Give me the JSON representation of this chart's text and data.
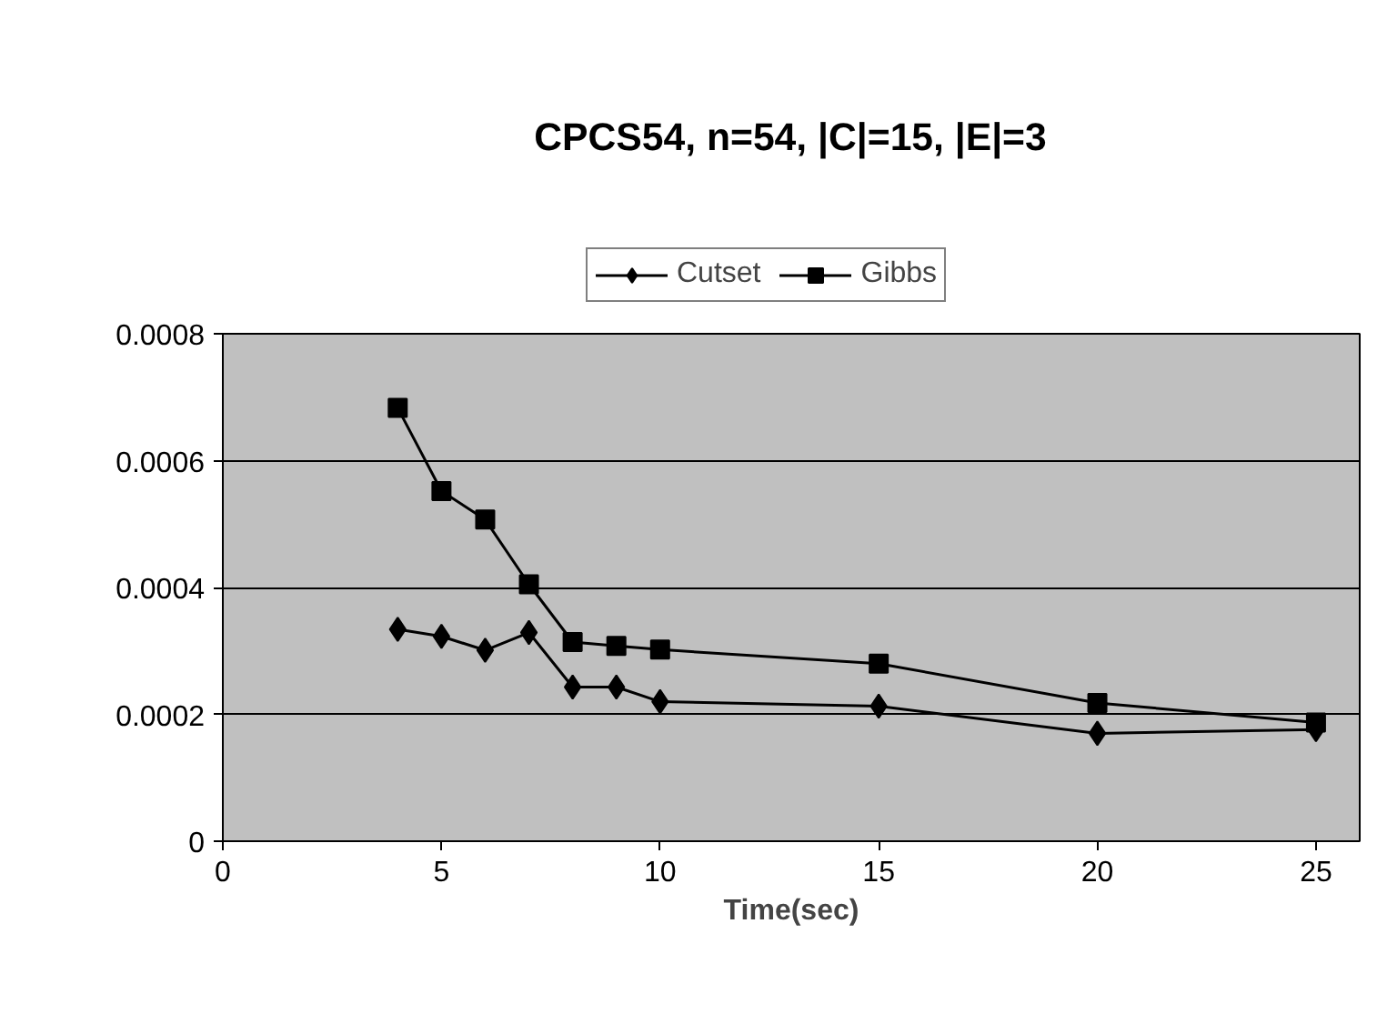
{
  "chart_data": {
    "type": "line",
    "title": "CPCS54, n=54, |C|=15, |E|=3",
    "xlabel": "Time(sec)",
    "x": [
      4,
      5,
      6,
      7,
      8,
      9,
      10,
      15,
      20,
      25
    ],
    "series": [
      {
        "name": "Cutset",
        "color": "#000000",
        "marker": "diamond",
        "values": [
          0.000334,
          0.000323,
          0.000301,
          0.000329,
          0.000243,
          0.000243,
          0.00022,
          0.000213,
          0.00017,
          0.000176
        ]
      },
      {
        "name": "Gibbs",
        "color": "#000000",
        "marker": "square",
        "values": [
          0.000683,
          0.000552,
          0.000507,
          0.000405,
          0.000314,
          0.000308,
          0.000302,
          0.00028,
          0.000218,
          0.000187
        ]
      }
    ],
    "xlim": [
      0,
      26
    ],
    "xticks": [
      0,
      5,
      10,
      15,
      20,
      25
    ],
    "ylim": [
      0,
      0.0008
    ],
    "yticks": [
      {
        "value": 0,
        "label": "0"
      },
      {
        "value": 0.0002,
        "label": "0.0002"
      },
      {
        "value": 0.0004,
        "label": "0.0004"
      },
      {
        "value": 0.0006,
        "label": "0.0006"
      },
      {
        "value": 0.0008,
        "label": "0.0008"
      }
    ],
    "grid": "y",
    "legend": "top",
    "line_style": "solid"
  }
}
